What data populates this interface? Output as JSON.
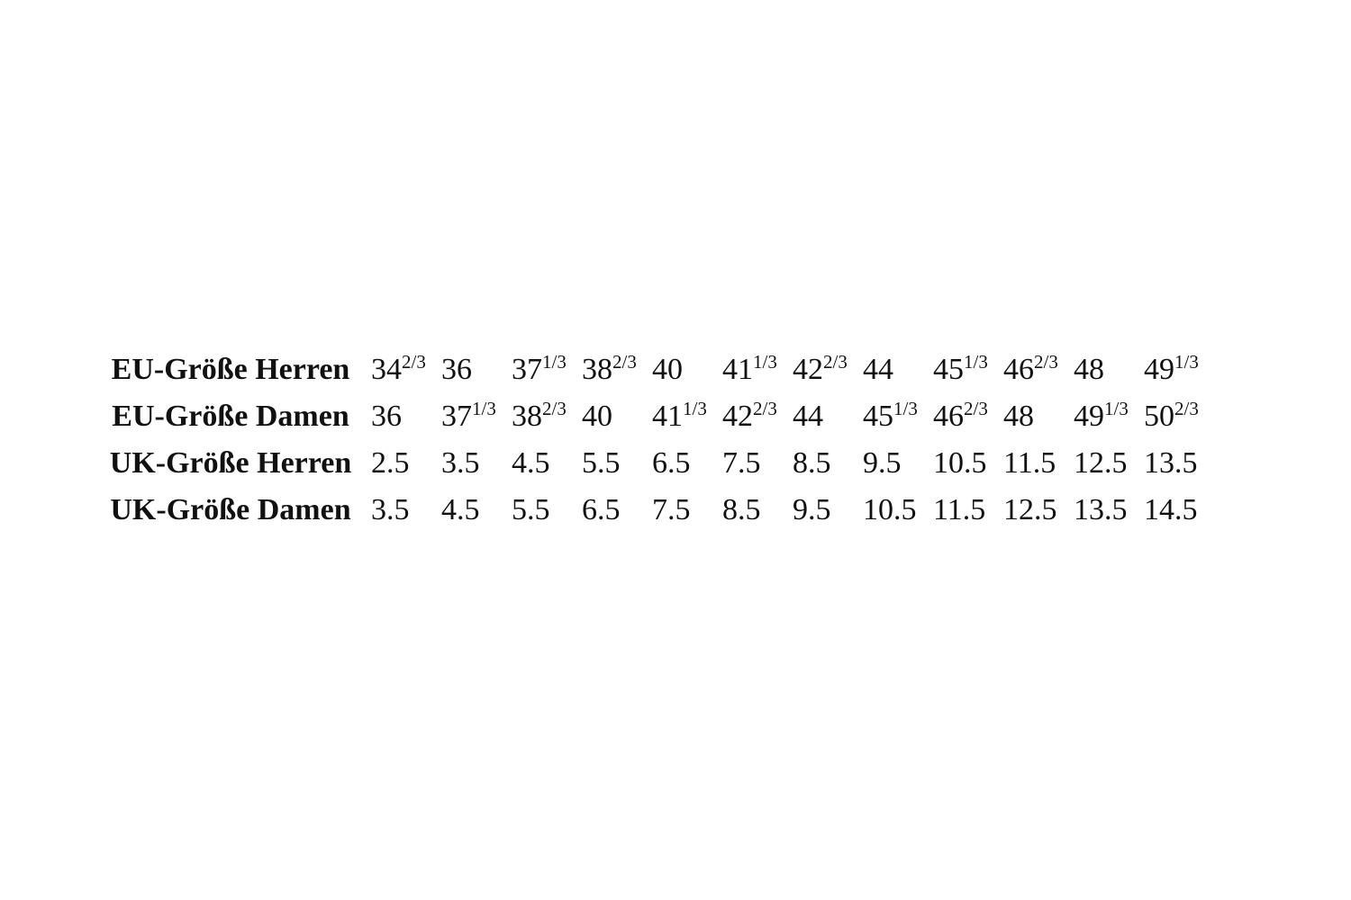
{
  "table": {
    "rows": [
      {
        "label": "EU-Größe Herren",
        "values": [
          {
            "whole": "34",
            "frac": "2/3"
          },
          {
            "whole": "36",
            "frac": ""
          },
          {
            "whole": "37",
            "frac": "1/3"
          },
          {
            "whole": "38",
            "frac": "2/3"
          },
          {
            "whole": "40",
            "frac": ""
          },
          {
            "whole": "41",
            "frac": "1/3"
          },
          {
            "whole": "42",
            "frac": "2/3"
          },
          {
            "whole": "44",
            "frac": ""
          },
          {
            "whole": "45",
            "frac": "1/3"
          },
          {
            "whole": "46",
            "frac": "2/3"
          },
          {
            "whole": "48",
            "frac": ""
          },
          {
            "whole": "49",
            "frac": "1/3"
          }
        ]
      },
      {
        "label": "EU-Größe Damen",
        "values": [
          {
            "whole": "36",
            "frac": ""
          },
          {
            "whole": "37",
            "frac": "1/3"
          },
          {
            "whole": "38",
            "frac": "2/3"
          },
          {
            "whole": "40",
            "frac": ""
          },
          {
            "whole": "41",
            "frac": "1/3"
          },
          {
            "whole": "42",
            "frac": "2/3"
          },
          {
            "whole": "44",
            "frac": ""
          },
          {
            "whole": "45",
            "frac": "1/3"
          },
          {
            "whole": "46",
            "frac": "2/3"
          },
          {
            "whole": "48",
            "frac": ""
          },
          {
            "whole": "49",
            "frac": "1/3"
          },
          {
            "whole": "50",
            "frac": "2/3"
          }
        ]
      },
      {
        "label": "UK-Größe Herren",
        "values": [
          {
            "whole": "2.5",
            "frac": ""
          },
          {
            "whole": "3.5",
            "frac": ""
          },
          {
            "whole": "4.5",
            "frac": ""
          },
          {
            "whole": "5.5",
            "frac": ""
          },
          {
            "whole": "6.5",
            "frac": ""
          },
          {
            "whole": "7.5",
            "frac": ""
          },
          {
            "whole": "8.5",
            "frac": ""
          },
          {
            "whole": "9.5",
            "frac": ""
          },
          {
            "whole": "10.5",
            "frac": ""
          },
          {
            "whole": "11.5",
            "frac": ""
          },
          {
            "whole": "12.5",
            "frac": ""
          },
          {
            "whole": "13.5",
            "frac": ""
          }
        ]
      },
      {
        "label": "UK-Größe Damen",
        "values": [
          {
            "whole": "3.5",
            "frac": ""
          },
          {
            "whole": "4.5",
            "frac": ""
          },
          {
            "whole": "5.5",
            "frac": ""
          },
          {
            "whole": "6.5",
            "frac": ""
          },
          {
            "whole": "7.5",
            "frac": ""
          },
          {
            "whole": "8.5",
            "frac": ""
          },
          {
            "whole": "9.5",
            "frac": ""
          },
          {
            "whole": "10.5",
            "frac": ""
          },
          {
            "whole": "11.5",
            "frac": ""
          },
          {
            "whole": "12.5",
            "frac": ""
          },
          {
            "whole": "13.5",
            "frac": ""
          },
          {
            "whole": "14.5",
            "frac": ""
          }
        ]
      }
    ]
  }
}
